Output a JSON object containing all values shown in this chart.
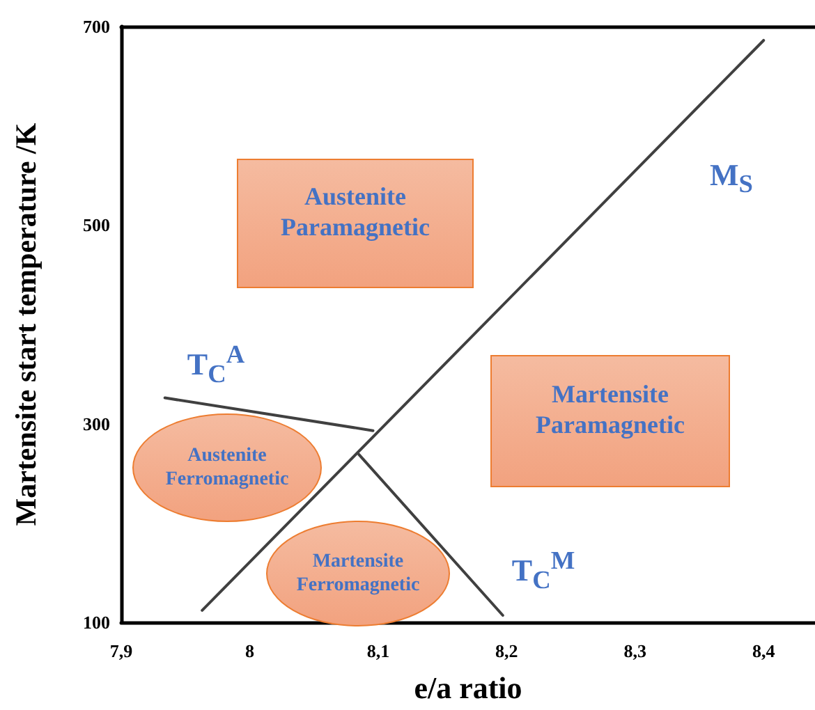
{
  "chart_data": {
    "type": "line",
    "xlabel": "e/a ratio",
    "ylabel": "Martensite start temperature /K",
    "xlim": [
      7.9,
      8.44
    ],
    "ylim": [
      100,
      700
    ],
    "xticks": [
      {
        "value": 7.9,
        "label": "7,9"
      },
      {
        "value": 8,
        "label": "8"
      },
      {
        "value": 8.1,
        "label": "8,1"
      },
      {
        "value": 8.2,
        "label": "8,2"
      },
      {
        "value": 8.3,
        "label": "8,3"
      },
      {
        "value": 8.4,
        "label": "8,4"
      }
    ],
    "yticks": [
      100,
      300,
      500,
      700
    ],
    "grid": false,
    "marker": "none",
    "line_style": "solid",
    "series": [
      {
        "color": "#404040",
        "x": [
          7.963,
          8.4
        ],
        "values": [
          112,
          686
        ]
      },
      {
        "color": "#404040",
        "x": [
          7.934,
          8.096
        ],
        "values": [
          326,
          293
        ]
      },
      {
        "color": "#404040",
        "x": [
          8.085,
          8.197
        ],
        "values": [
          269,
          107
        ]
      }
    ],
    "annotations": [
      "Austenite\nParamagnetic",
      "Martensite\nParamagnetic",
      "Austenite\nFerromagnetic",
      "Martensite\nFerromagnetic",
      "M$_{S}$",
      "T$_{C}$$^{A}$",
      "T$_{C}$$^{M}$"
    ]
  }
}
